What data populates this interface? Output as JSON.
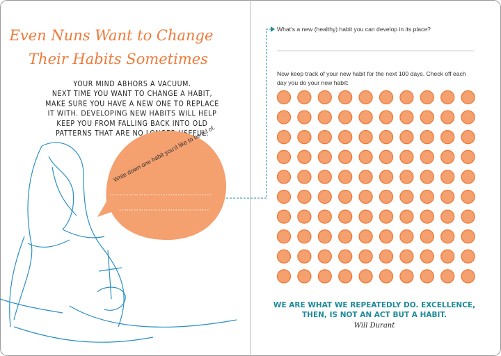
{
  "left_page": {
    "title": [
      "Even Nuns Want to Change",
      "Their Habits Sometimes"
    ],
    "body": [
      "YOUR MIND ABHORS A VACUUM.",
      "NEXT TIME YOU WANT TO CHANGE A HABIT,",
      "MAKE SURE YOU HAVE A NEW ONE TO REPLACE",
      "IT WITH. DEVELOPING NEW HABITS WILL HELP",
      "KEEP YOU FROM FALLING BACK INTO OLD",
      "PATTERNS THAT ARE NO LONGER USEFUL."
    ],
    "bubble_prompt": "Write down one habit you'd like to be rid of."
  },
  "right_page": {
    "question": "What's a new (healthy) habit you can develop in its place?",
    "tracker_instructions": [
      "Now keep track of your new habit for the next 100 days. Check off each",
      "day you do your new habit:"
    ],
    "quote": [
      "WE ARE WHAT WE REPEATEDLY DO. EXCELLENCE,",
      "THEN, IS NOT AN ACT BUT A HABIT."
    ],
    "attribution": "Will Durant"
  }
}
